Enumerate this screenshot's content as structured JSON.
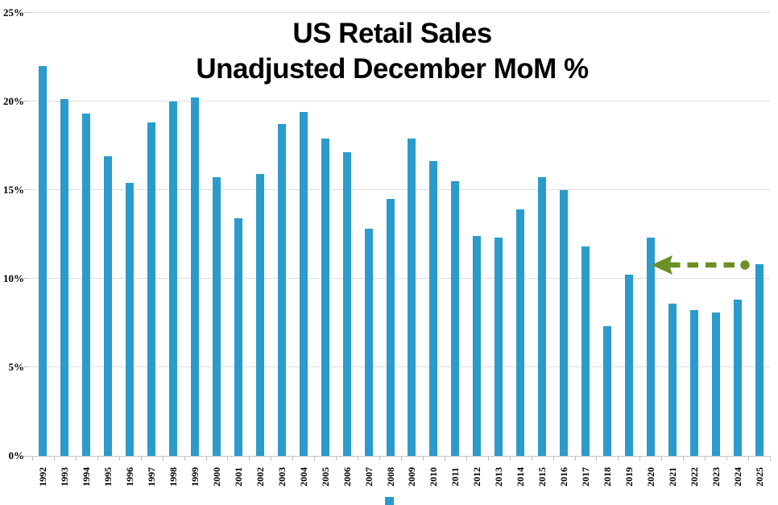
{
  "chart_data": {
    "type": "bar",
    "title": "US Retail Sales",
    "subtitle": "Unadjusted December MoM %",
    "categories": [
      "1992",
      "1993",
      "1994",
      "1995",
      "1996",
      "1997",
      "1998",
      "1999",
      "2000",
      "2001",
      "2002",
      "2003",
      "2004",
      "2005",
      "2006",
      "2007",
      "2008",
      "2009",
      "2010",
      "2011",
      "2012",
      "2013",
      "2014",
      "2015",
      "2016",
      "2017",
      "2018",
      "2019",
      "2020",
      "2021",
      "2022",
      "2023",
      "2024",
      "2025"
    ],
    "values": [
      22.0,
      20.1,
      19.3,
      16.9,
      15.4,
      18.8,
      20.0,
      20.2,
      15.7,
      13.4,
      15.9,
      18.7,
      19.4,
      17.9,
      17.1,
      12.8,
      14.5,
      17.9,
      16.6,
      15.5,
      12.4,
      12.3,
      13.9,
      15.7,
      15.0,
      11.8,
      7.3,
      10.2,
      12.3,
      8.6,
      8.2,
      8.1,
      8.8,
      10.8
    ],
    "ylim": [
      0,
      25
    ],
    "yticks": [
      {
        "value": 0,
        "label": "0%"
      },
      {
        "value": 5,
        "label": "5%"
      },
      {
        "value": 10,
        "label": "10%"
      },
      {
        "value": 15,
        "label": "15%"
      },
      {
        "value": 20,
        "label": "20%"
      },
      {
        "value": 25,
        "label": "25%"
      }
    ],
    "grid": true,
    "legend_position": "bottom",
    "bar_color": "#2b9bcb",
    "grid_color": "#dddddd",
    "axis_color": "#c2c2c2",
    "annotation": {
      "shape": "dashed-arrow",
      "direction": "left",
      "color": "#6b8f23",
      "from_category": "2025",
      "to_category": "2020",
      "at_value": 10.8
    }
  }
}
